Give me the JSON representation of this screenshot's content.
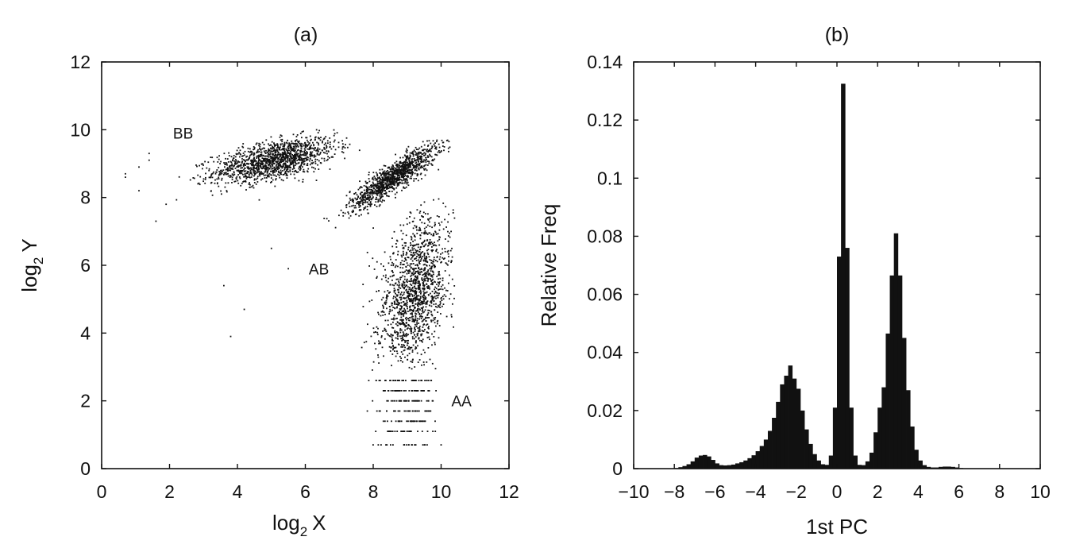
{
  "chart_data": [
    {
      "type": "scatter",
      "title": "(a)",
      "xlabel": {
        "base": "log",
        "sub": "2",
        "var": "X"
      },
      "ylabel": {
        "base": "log",
        "sub": "2",
        "var": "Y"
      },
      "xlim": [
        0,
        12
      ],
      "ylim": [
        0,
        12
      ],
      "xticks": [
        "0",
        "2",
        "4",
        "6",
        "8",
        "10",
        "12"
      ],
      "yticks": [
        "0",
        "2",
        "4",
        "6",
        "8",
        "10",
        "12"
      ],
      "grid": false,
      "annotations": [
        {
          "text": "BB",
          "x": 2.4,
          "y": 9.9
        },
        {
          "text": "AB",
          "x": 6.4,
          "y": 5.9
        },
        {
          "text": "AA",
          "x": 10.6,
          "y": 2.0
        }
      ],
      "clusters": [
        {
          "name": "BB",
          "center_x": 5.1,
          "center_y": 9.1,
          "x_range": [
            1.8,
            7.6
          ],
          "y_range": [
            7.7,
            10.0
          ]
        },
        {
          "name": "AB",
          "center_x": 8.6,
          "center_y": 8.6,
          "x_range": [
            6.3,
            10.3
          ],
          "y_range": [
            7.0,
            9.7
          ]
        },
        {
          "name": "AA",
          "center_x": 9.2,
          "center_y": 5.2,
          "x_range": [
            7.1,
            10.4
          ],
          "y_range": [
            0.7,
            8.0
          ]
        }
      ],
      "outliers": [
        {
          "x": 0.7,
          "y": 8.7
        },
        {
          "x": 0.7,
          "y": 8.6
        },
        {
          "x": 1.1,
          "y": 8.9
        },
        {
          "x": 1.1,
          "y": 8.2
        },
        {
          "x": 1.4,
          "y": 9.3
        },
        {
          "x": 1.4,
          "y": 9.1
        },
        {
          "x": 1.6,
          "y": 7.3
        },
        {
          "x": 1.9,
          "y": 7.8
        },
        {
          "x": 3.6,
          "y": 5.4
        },
        {
          "x": 4.2,
          "y": 4.7
        },
        {
          "x": 3.8,
          "y": 3.9
        },
        {
          "x": 5.5,
          "y": 5.9
        },
        {
          "x": 5.0,
          "y": 6.5
        }
      ],
      "quantized_rows_y": [
        0.7,
        1.1,
        1.4,
        1.7,
        2.0,
        2.3,
        2.6
      ]
    },
    {
      "type": "bar",
      "title": "(b)",
      "xlabel": "1st PC",
      "ylabel": "Relative Freq",
      "xlim": [
        -10,
        10
      ],
      "ylim": [
        0,
        0.14
      ],
      "xticks": [
        "−10",
        "−8",
        "−6",
        "−4",
        "−2",
        "0",
        "2",
        "4",
        "6",
        "8",
        "10"
      ],
      "yticks": [
        "0",
        "0.02",
        "0.04",
        "0.06",
        "0.08",
        "0.1",
        "0.12",
        "0.14"
      ],
      "grid": false,
      "bin_width": 0.2,
      "bins": [
        {
          "x": -8.1,
          "y": 0.0001
        },
        {
          "x": -7.9,
          "y": 0.0002
        },
        {
          "x": -7.7,
          "y": 0.0005
        },
        {
          "x": -7.5,
          "y": 0.0009
        },
        {
          "x": -7.3,
          "y": 0.0015
        },
        {
          "x": -7.1,
          "y": 0.0025
        },
        {
          "x": -6.9,
          "y": 0.0038
        },
        {
          "x": -6.7,
          "y": 0.0045
        },
        {
          "x": -6.5,
          "y": 0.0047
        },
        {
          "x": -6.3,
          "y": 0.0042
        },
        {
          "x": -6.1,
          "y": 0.003
        },
        {
          "x": -5.9,
          "y": 0.0018
        },
        {
          "x": -5.7,
          "y": 0.0012
        },
        {
          "x": -5.5,
          "y": 0.0011
        },
        {
          "x": -5.3,
          "y": 0.0012
        },
        {
          "x": -5.1,
          "y": 0.0014
        },
        {
          "x": -4.9,
          "y": 0.0018
        },
        {
          "x": -4.7,
          "y": 0.0022
        },
        {
          "x": -4.5,
          "y": 0.0028
        },
        {
          "x": -4.3,
          "y": 0.0036
        },
        {
          "x": -4.1,
          "y": 0.0046
        },
        {
          "x": -3.9,
          "y": 0.006
        },
        {
          "x": -3.7,
          "y": 0.0078
        },
        {
          "x": -3.5,
          "y": 0.01
        },
        {
          "x": -3.3,
          "y": 0.013
        },
        {
          "x": -3.1,
          "y": 0.0175
        },
        {
          "x": -2.9,
          "y": 0.023
        },
        {
          "x": -2.7,
          "y": 0.029
        },
        {
          "x": -2.5,
          "y": 0.032
        },
        {
          "x": -2.3,
          "y": 0.0355
        },
        {
          "x": -2.1,
          "y": 0.031
        },
        {
          "x": -1.9,
          "y": 0.0275
        },
        {
          "x": -1.7,
          "y": 0.02
        },
        {
          "x": -1.5,
          "y": 0.0135
        },
        {
          "x": -1.3,
          "y": 0.0085
        },
        {
          "x": -1.1,
          "y": 0.005
        },
        {
          "x": -0.9,
          "y": 0.0028
        },
        {
          "x": -0.7,
          "y": 0.0015
        },
        {
          "x": -0.5,
          "y": 0.0013
        },
        {
          "x": -0.3,
          "y": 0.0045
        },
        {
          "x": -0.1,
          "y": 0.021
        },
        {
          "x": 0.1,
          "y": 0.073
        },
        {
          "x": 0.3,
          "y": 0.1325
        },
        {
          "x": 0.5,
          "y": 0.076
        },
        {
          "x": 0.7,
          "y": 0.021
        },
        {
          "x": 0.9,
          "y": 0.0045
        },
        {
          "x": 1.1,
          "y": 0.0013
        },
        {
          "x": 1.3,
          "y": 0.0012
        },
        {
          "x": 1.5,
          "y": 0.0025
        },
        {
          "x": 1.7,
          "y": 0.0055
        },
        {
          "x": 1.9,
          "y": 0.0125
        },
        {
          "x": 2.1,
          "y": 0.021
        },
        {
          "x": 2.3,
          "y": 0.028
        },
        {
          "x": 2.5,
          "y": 0.0465
        },
        {
          "x": 2.7,
          "y": 0.0665
        },
        {
          "x": 2.9,
          "y": 0.081
        },
        {
          "x": 3.1,
          "y": 0.0665
        },
        {
          "x": 3.3,
          "y": 0.045
        },
        {
          "x": 3.5,
          "y": 0.027
        },
        {
          "x": 3.7,
          "y": 0.0145
        },
        {
          "x": 3.9,
          "y": 0.0065
        },
        {
          "x": 4.1,
          "y": 0.0028
        },
        {
          "x": 4.3,
          "y": 0.0012
        },
        {
          "x": 4.5,
          "y": 0.0006
        },
        {
          "x": 4.7,
          "y": 0.0004
        },
        {
          "x": 4.9,
          "y": 0.0004
        },
        {
          "x": 5.1,
          "y": 0.0006
        },
        {
          "x": 5.3,
          "y": 0.0007
        },
        {
          "x": 5.5,
          "y": 0.0007
        },
        {
          "x": 5.7,
          "y": 0.0006
        },
        {
          "x": 5.9,
          "y": 0.0004
        },
        {
          "x": 6.1,
          "y": 0.0002
        }
      ]
    }
  ]
}
